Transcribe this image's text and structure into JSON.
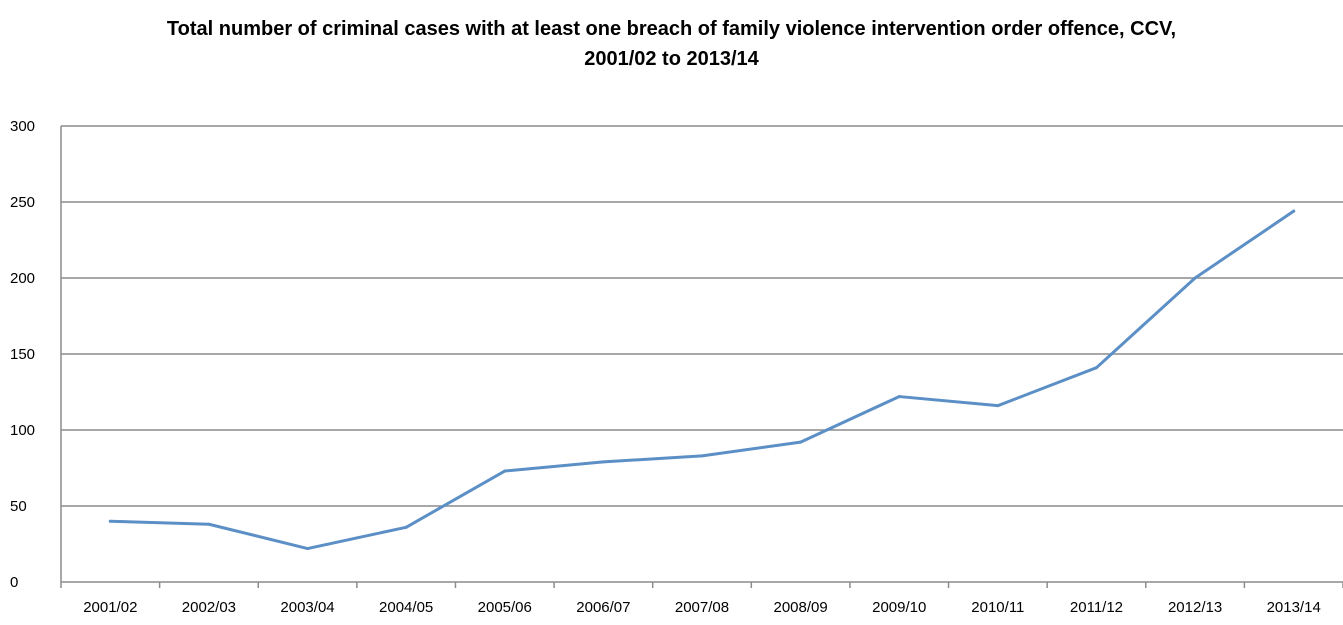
{
  "chart_data": {
    "type": "line",
    "title_lines": [
      "Total number of criminal cases with at least one breach of family violence intervention order offence, CCV,",
      "2001/02 to 2013/14"
    ],
    "categories": [
      "2001/02",
      "2002/03",
      "2003/04",
      "2004/05",
      "2005/06",
      "2006/07",
      "2007/08",
      "2008/09",
      "2009/10",
      "2010/11",
      "2011/12",
      "2012/13",
      "2013/14"
    ],
    "series": [
      {
        "values": [
          40,
          38,
          22,
          36,
          73,
          79,
          83,
          92,
          122,
          116,
          141,
          200,
          244
        ]
      }
    ],
    "ylim": [
      0,
      300
    ],
    "yticks": [
      0,
      50,
      100,
      150,
      200,
      250,
      300
    ],
    "grid": true,
    "line_color": "#5b8fc6",
    "grid_color": "#8c8c8c"
  }
}
